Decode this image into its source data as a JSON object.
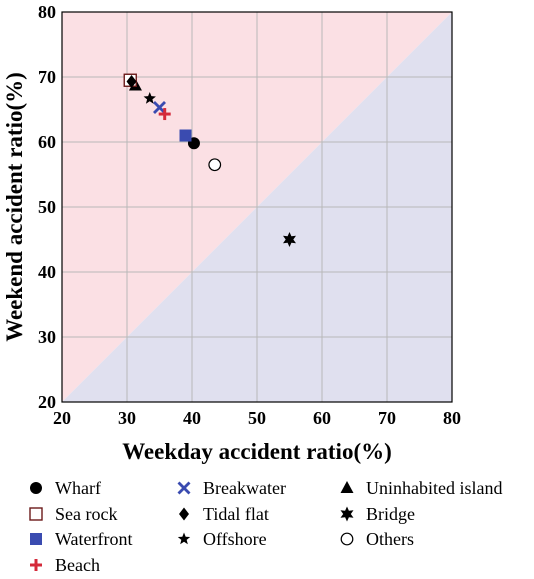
{
  "chart_data": {
    "type": "scatter",
    "title": "",
    "xlabel": "Weekday accident ratio(%)",
    "ylabel": "Weekend accident ratio(%)",
    "xlim": [
      20,
      80
    ],
    "ylim": [
      20,
      80
    ],
    "x_ticks": [
      "20",
      "30",
      "40",
      "50",
      "60",
      "70",
      "80"
    ],
    "y_ticks": [
      "20",
      "30",
      "40",
      "50",
      "60",
      "70",
      "80"
    ],
    "grid": true,
    "regions": [
      {
        "description": "above diagonal y = x",
        "color": "#fbe0e4"
      },
      {
        "description": "below diagonal y = x",
        "color": "#e0e0ef"
      }
    ],
    "legend_position": "bottom",
    "series": [
      {
        "name": "Wharf",
        "marker": "filled-circle",
        "color": "#000000",
        "x": 40.3,
        "y": 59.8
      },
      {
        "name": "Breakwater",
        "marker": "x",
        "color": "#3a4bb0",
        "x": 35.0,
        "y": 65.3
      },
      {
        "name": "Uninhabited island",
        "marker": "filled-triangle",
        "color": "#000000",
        "x": 31.3,
        "y": 68.7
      },
      {
        "name": "Sea rock",
        "marker": "open-square",
        "color": "#6b1a1a",
        "x": 30.5,
        "y": 69.5
      },
      {
        "name": "Tidal flat",
        "marker": "filled-diamond",
        "color": "#000000",
        "x": 30.7,
        "y": 69.3
      },
      {
        "name": "Bridge",
        "marker": "six-point-star",
        "color": "#000000",
        "x": 55.0,
        "y": 45.0
      },
      {
        "name": "Waterfront",
        "marker": "filled-square",
        "color": "#3a4bb0",
        "x": 39.0,
        "y": 61.0
      },
      {
        "name": "Offshore",
        "marker": "five-point-star",
        "color": "#000000",
        "x": 33.5,
        "y": 66.7
      },
      {
        "name": "Others",
        "marker": "open-circle",
        "color": "#000000",
        "x": 43.5,
        "y": 56.5
      },
      {
        "name": "Beach",
        "marker": "plus",
        "color": "#d42a3a",
        "x": 35.8,
        "y": 64.3
      }
    ],
    "legend_order": [
      [
        "Wharf",
        "Breakwater",
        "Uninhabited island"
      ],
      [
        "Sea rock",
        "Tidal flat",
        "Bridge"
      ],
      [
        "Waterfront",
        "Offshore",
        "Others"
      ],
      [
        "Beach"
      ]
    ]
  }
}
